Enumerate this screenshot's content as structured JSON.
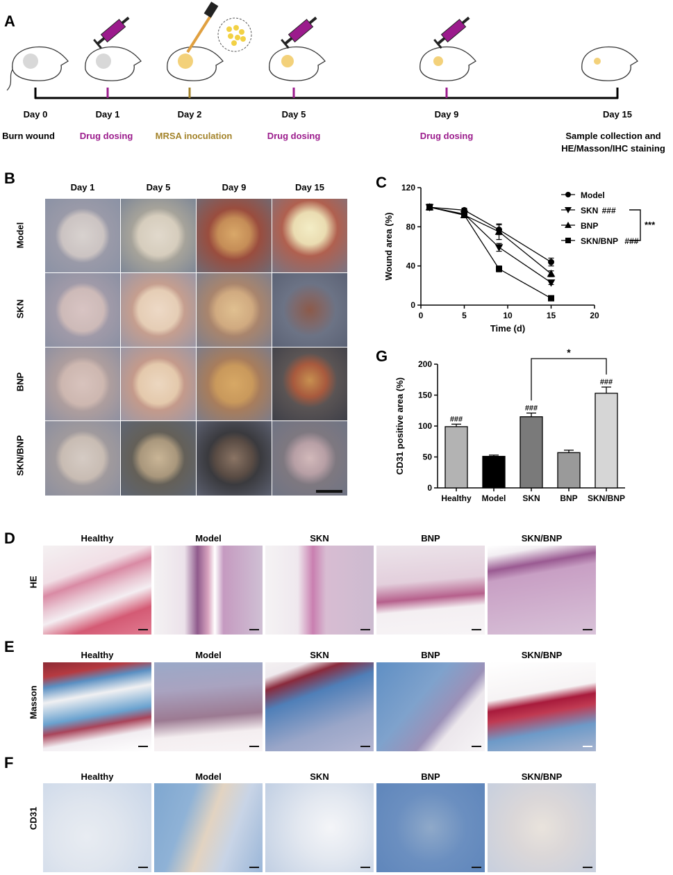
{
  "panels": {
    "A": {
      "label": "A",
      "timeline": [
        {
          "day": "Day 0",
          "event": "Burn wound",
          "color": "#000000"
        },
        {
          "day": "Day 1",
          "event": "Drug dosing",
          "color": "#9b1b8c"
        },
        {
          "day": "Day 2",
          "event": "MRSA inoculation",
          "color": "#a3832a"
        },
        {
          "day": "Day 5",
          "event": "Drug dosing",
          "color": "#9b1b8c"
        },
        {
          "day": "Day 9",
          "event": "Drug dosing",
          "color": "#9b1b8c"
        },
        {
          "day": "Day 15",
          "event": "Sample collection and",
          "event2": "HE/Masson/IHC staining",
          "color": "#000000"
        }
      ]
    },
    "B": {
      "label": "B",
      "columns": [
        "Day 1",
        "Day 5",
        "Day 9",
        "Day 15"
      ],
      "rows": [
        "Model",
        "SKN",
        "BNP",
        "SKN/BNP"
      ]
    },
    "C": {
      "label": "C",
      "ylabel": "Wound area (%)",
      "xlabel": "Time (d)",
      "significance": "***",
      "legend_hash": "###"
    },
    "G": {
      "label": "G",
      "ylabel": "CD31 positive area (%)",
      "significance": "*",
      "hash": "###"
    },
    "D": {
      "label": "D",
      "row": "HE"
    },
    "E": {
      "label": "E",
      "row": "Masson"
    },
    "F": {
      "label": "F",
      "row": "CD31"
    },
    "histology_columns": [
      "Healthy",
      "Model",
      "SKN",
      "BNP",
      "SKN/BNP"
    ]
  },
  "chart_data": [
    {
      "type": "line",
      "panel": "C",
      "xlabel": "Time (d)",
      "ylabel": "Wound area (%)",
      "xlim": [
        0,
        20
      ],
      "ylim": [
        0,
        120
      ],
      "xticks": [
        0,
        5,
        10,
        15,
        20
      ],
      "yticks": [
        0,
        40,
        80,
        120
      ],
      "legend_position": "top-right",
      "series": [
        {
          "name": "Model",
          "marker": "circle",
          "x": [
            1,
            5,
            9,
            15
          ],
          "y": [
            100,
            97,
            77,
            44
          ],
          "err": [
            3,
            2,
            5,
            4
          ],
          "annotation": ""
        },
        {
          "name": "SKN",
          "marker": "triangle-down",
          "x": [
            1,
            5,
            9,
            15
          ],
          "y": [
            100,
            93,
            59,
            23
          ],
          "err": [
            3,
            2,
            4,
            2
          ],
          "annotation": "###"
        },
        {
          "name": "BNP",
          "marker": "triangle-up",
          "x": [
            1,
            5,
            9,
            15
          ],
          "y": [
            100,
            92,
            75,
            32
          ],
          "err": [
            3,
            2,
            8,
            3
          ],
          "annotation": ""
        },
        {
          "name": "SKN/BNP",
          "marker": "square",
          "x": [
            1,
            5,
            9,
            15
          ],
          "y": [
            100,
            92,
            37,
            7
          ],
          "err": [
            3,
            2,
            3,
            1
          ],
          "annotation": "###"
        }
      ],
      "bracket_label": "***"
    },
    {
      "type": "bar",
      "panel": "G",
      "ylabel": "CD31 positive area (%)",
      "ylim": [
        0,
        200
      ],
      "yticks": [
        0,
        50,
        100,
        150,
        200
      ],
      "categories": [
        "Healthy",
        "Model",
        "SKN",
        "BNP",
        "SKN/BNP"
      ],
      "values": [
        99,
        51,
        115,
        57,
        153
      ],
      "errors": [
        4,
        2,
        6,
        4,
        10
      ],
      "colors": [
        "#b3b3b3",
        "#000000",
        "#7a7a7a",
        "#9a9a9a",
        "#d6d6d6"
      ],
      "annotations": [
        "###",
        "",
        "###",
        "",
        "###"
      ],
      "bracket": {
        "from": "SKN",
        "to": "SKN/BNP",
        "label": "*"
      }
    }
  ]
}
